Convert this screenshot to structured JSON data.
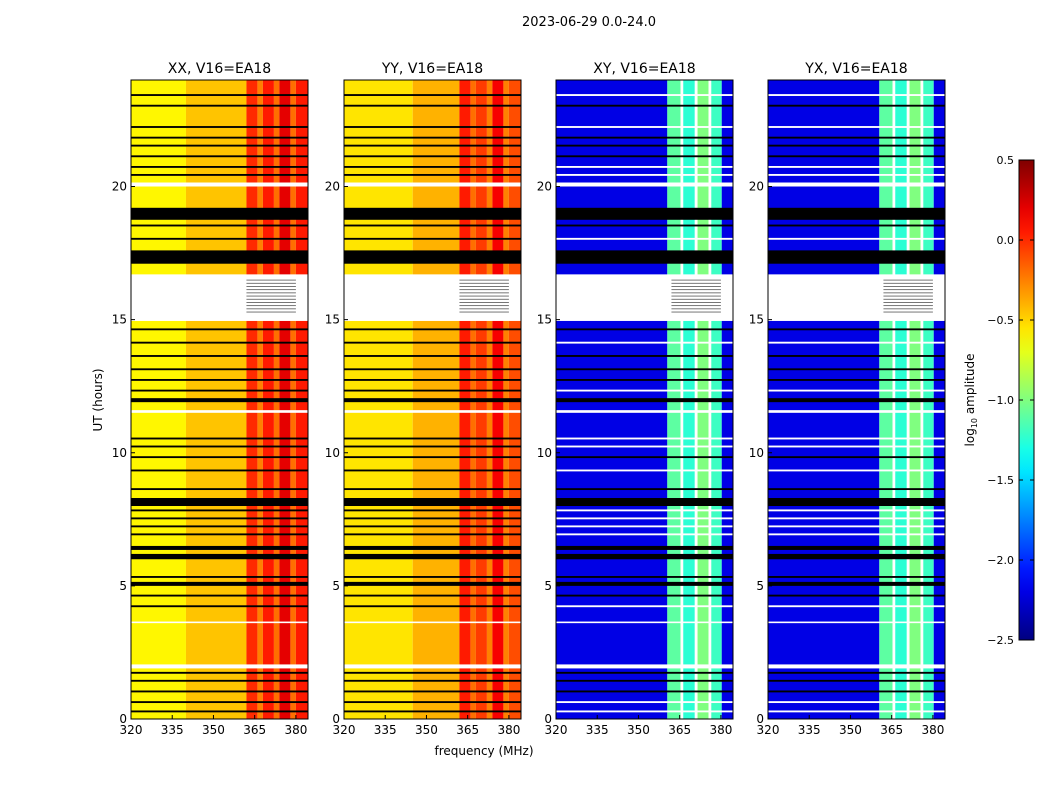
{
  "chart_data": {
    "type": "heatmap",
    "title": "2023-06-29 0.0-24.0",
    "xlabel": "frequency (MHz)",
    "ylabel": "UT (hours)",
    "xlim": [
      320,
      384.4
    ],
    "ylim": [
      0,
      24
    ],
    "xticks": [
      320,
      335,
      350,
      365,
      380
    ],
    "yticks": [
      0,
      5,
      10,
      15,
      20
    ],
    "colorbar": {
      "label": "log10 amplitude",
      "label_main": "log",
      "label_sub": "10",
      "label_tail": " amplitude",
      "colormap": "jet",
      "range": [
        -2.5,
        0.5
      ],
      "ticks": [
        0.5,
        0.0,
        -0.5,
        -1.0,
        -1.5,
        -2.0,
        -2.5
      ],
      "tick_labels": [
        "0.5",
        "0.0",
        "−0.5",
        "−1.0",
        "−1.5",
        "−2.0",
        "−2.5"
      ]
    },
    "panels": [
      {
        "title": "XX, V16=EA18",
        "background": -0.55,
        "segments": [
          [
            320,
            340,
            -0.6
          ],
          [
            340,
            362,
            -0.45
          ],
          [
            362,
            366,
            0.0
          ],
          [
            366,
            368,
            -0.25
          ],
          [
            368,
            372,
            0.05
          ],
          [
            372,
            374,
            -0.2
          ],
          [
            374,
            378,
            0.2
          ],
          [
            378,
            380,
            -0.2
          ],
          [
            380,
            384.4,
            0.05
          ]
        ],
        "flag_color": "#000"
      },
      {
        "title": "YY, V16=EA18",
        "background": -0.55,
        "segments": [
          [
            320,
            345,
            -0.55
          ],
          [
            345,
            362,
            -0.4
          ],
          [
            362,
            366,
            0.05
          ],
          [
            366,
            368,
            -0.2
          ],
          [
            368,
            372,
            -0.05
          ],
          [
            372,
            374,
            -0.25
          ],
          [
            374,
            378,
            0.15
          ],
          [
            378,
            380,
            -0.25
          ],
          [
            380,
            384.4,
            -0.1
          ]
        ],
        "flag_color": "#000"
      },
      {
        "title": "XY, V16=EA18",
        "background": -2.2,
        "segments": [
          [
            320,
            360.5,
            -2.2
          ],
          [
            360.5,
            365.3,
            -1.1
          ],
          [
            365.3,
            366.3,
            "flag"
          ],
          [
            366.3,
            370.5,
            -1.25
          ],
          [
            370.5,
            371.5,
            "flag"
          ],
          [
            371.5,
            375.5,
            -1.0
          ],
          [
            375.5,
            376.5,
            "flag"
          ],
          [
            376.5,
            380.3,
            -1.2
          ],
          [
            380.3,
            384.4,
            -2.2
          ]
        ],
        "flag_color": "#fff"
      },
      {
        "title": "YX, V16=EA18",
        "background": -2.2,
        "segments": [
          [
            320,
            360.5,
            -2.2
          ],
          [
            360.5,
            365.3,
            -1.1
          ],
          [
            365.3,
            366.3,
            "flag"
          ],
          [
            366.3,
            370.5,
            -1.25
          ],
          [
            370.5,
            371.5,
            "flag"
          ],
          [
            371.5,
            375.5,
            -1.0
          ],
          [
            375.5,
            376.5,
            "flag"
          ],
          [
            376.5,
            380.3,
            -1.2
          ],
          [
            380.3,
            384.4,
            -2.2
          ]
        ],
        "flag_color": "#fff"
      }
    ],
    "flagged_times": [
      [
        0.25,
        0.32,
        "k"
      ],
      [
        0.6,
        0.67,
        "k"
      ],
      [
        1.0,
        1.07,
        "k"
      ],
      [
        1.4,
        1.47,
        "k"
      ],
      [
        1.7,
        1.77,
        "k"
      ],
      [
        1.9,
        2.05,
        "w"
      ],
      [
        3.6,
        3.66,
        "w"
      ],
      [
        4.2,
        4.27,
        "k"
      ],
      [
        4.6,
        4.67,
        "k"
      ],
      [
        5.0,
        5.15,
        "k"
      ],
      [
        5.3,
        5.37,
        "k"
      ],
      [
        6.0,
        6.2,
        "k"
      ],
      [
        6.35,
        6.5,
        "k"
      ],
      [
        6.9,
        6.97,
        "k"
      ],
      [
        7.2,
        7.27,
        "k"
      ],
      [
        7.5,
        7.57,
        "k"
      ],
      [
        7.8,
        7.87,
        "k"
      ],
      [
        8.0,
        8.3,
        "k"
      ],
      [
        8.6,
        8.67,
        "k"
      ],
      [
        9.3,
        9.37,
        "k"
      ],
      [
        9.8,
        9.87,
        "k"
      ],
      [
        10.2,
        10.27,
        "k"
      ],
      [
        10.5,
        10.57,
        "k"
      ],
      [
        11.5,
        11.6,
        "w"
      ],
      [
        11.9,
        12.05,
        "k"
      ],
      [
        12.3,
        12.37,
        "k"
      ],
      [
        12.7,
        12.77,
        "k"
      ],
      [
        13.1,
        13.17,
        "k"
      ],
      [
        13.6,
        13.67,
        "k"
      ],
      [
        14.1,
        14.17,
        "k"
      ],
      [
        14.6,
        14.67,
        "k"
      ],
      [
        14.95,
        16.7,
        "w"
      ],
      [
        17.1,
        17.6,
        "k"
      ],
      [
        18.0,
        18.07,
        "k"
      ],
      [
        18.5,
        18.57,
        "k"
      ],
      [
        18.75,
        19.2,
        "k"
      ],
      [
        20.0,
        20.15,
        "w"
      ],
      [
        20.4,
        20.47,
        "k"
      ],
      [
        20.7,
        20.77,
        "k"
      ],
      [
        21.1,
        21.17,
        "k"
      ],
      [
        21.5,
        21.57,
        "k"
      ],
      [
        21.8,
        21.87,
        "k"
      ],
      [
        22.2,
        22.27,
        "k"
      ],
      [
        23.0,
        23.07,
        "k"
      ],
      [
        23.4,
        23.47,
        "k"
      ]
    ]
  }
}
